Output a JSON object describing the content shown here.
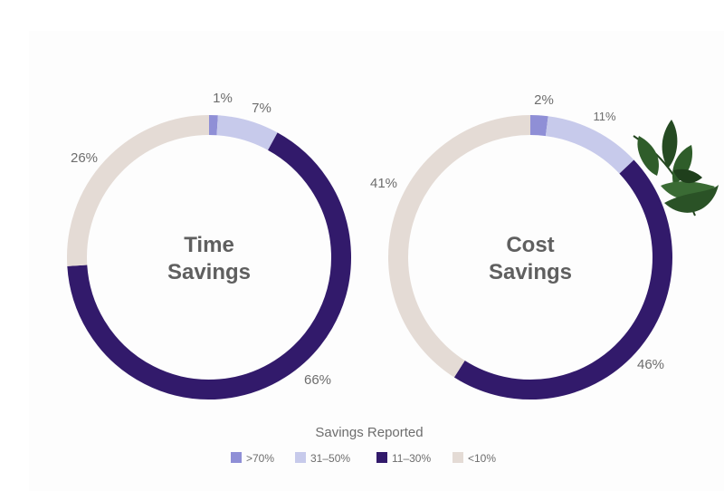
{
  "chart_data": [
    {
      "type": "pie",
      "title": "Time Savings",
      "title_lines": [
        "Time",
        "Savings"
      ],
      "categories": [
        ">70%",
        "31–50%",
        "11–30%",
        "<10%"
      ],
      "values": [
        1,
        7,
        66,
        26
      ],
      "labels": [
        "1%",
        "7%",
        "66%",
        "26%"
      ]
    },
    {
      "type": "pie",
      "title": "Cost Savings",
      "title_lines": [
        "Cost",
        "Savings"
      ],
      "categories": [
        ">70%",
        "31–50%",
        "11–30%",
        "<10%"
      ],
      "values": [
        2,
        11,
        46,
        41
      ],
      "labels": [
        "2%",
        "11%",
        "46%",
        "41%"
      ]
    }
  ],
  "legend": {
    "title": "Savings Reported",
    "items": [
      {
        "label": ">70%",
        "color": "#8f8fd6"
      },
      {
        "label": "31–50%",
        "color": "#c7caeb"
      },
      {
        "label": "11–30%",
        "color": "#321a6b"
      },
      {
        "label": "<10%",
        "color": "#e4dbd5"
      }
    ]
  },
  "colors": [
    "#8f8fd6",
    "#c7caeb",
    "#321a6b",
    "#e4dbd5"
  ],
  "decoration": {
    "icon": "leaf-branch-icon",
    "leaf_color": "#2e5a2a"
  }
}
